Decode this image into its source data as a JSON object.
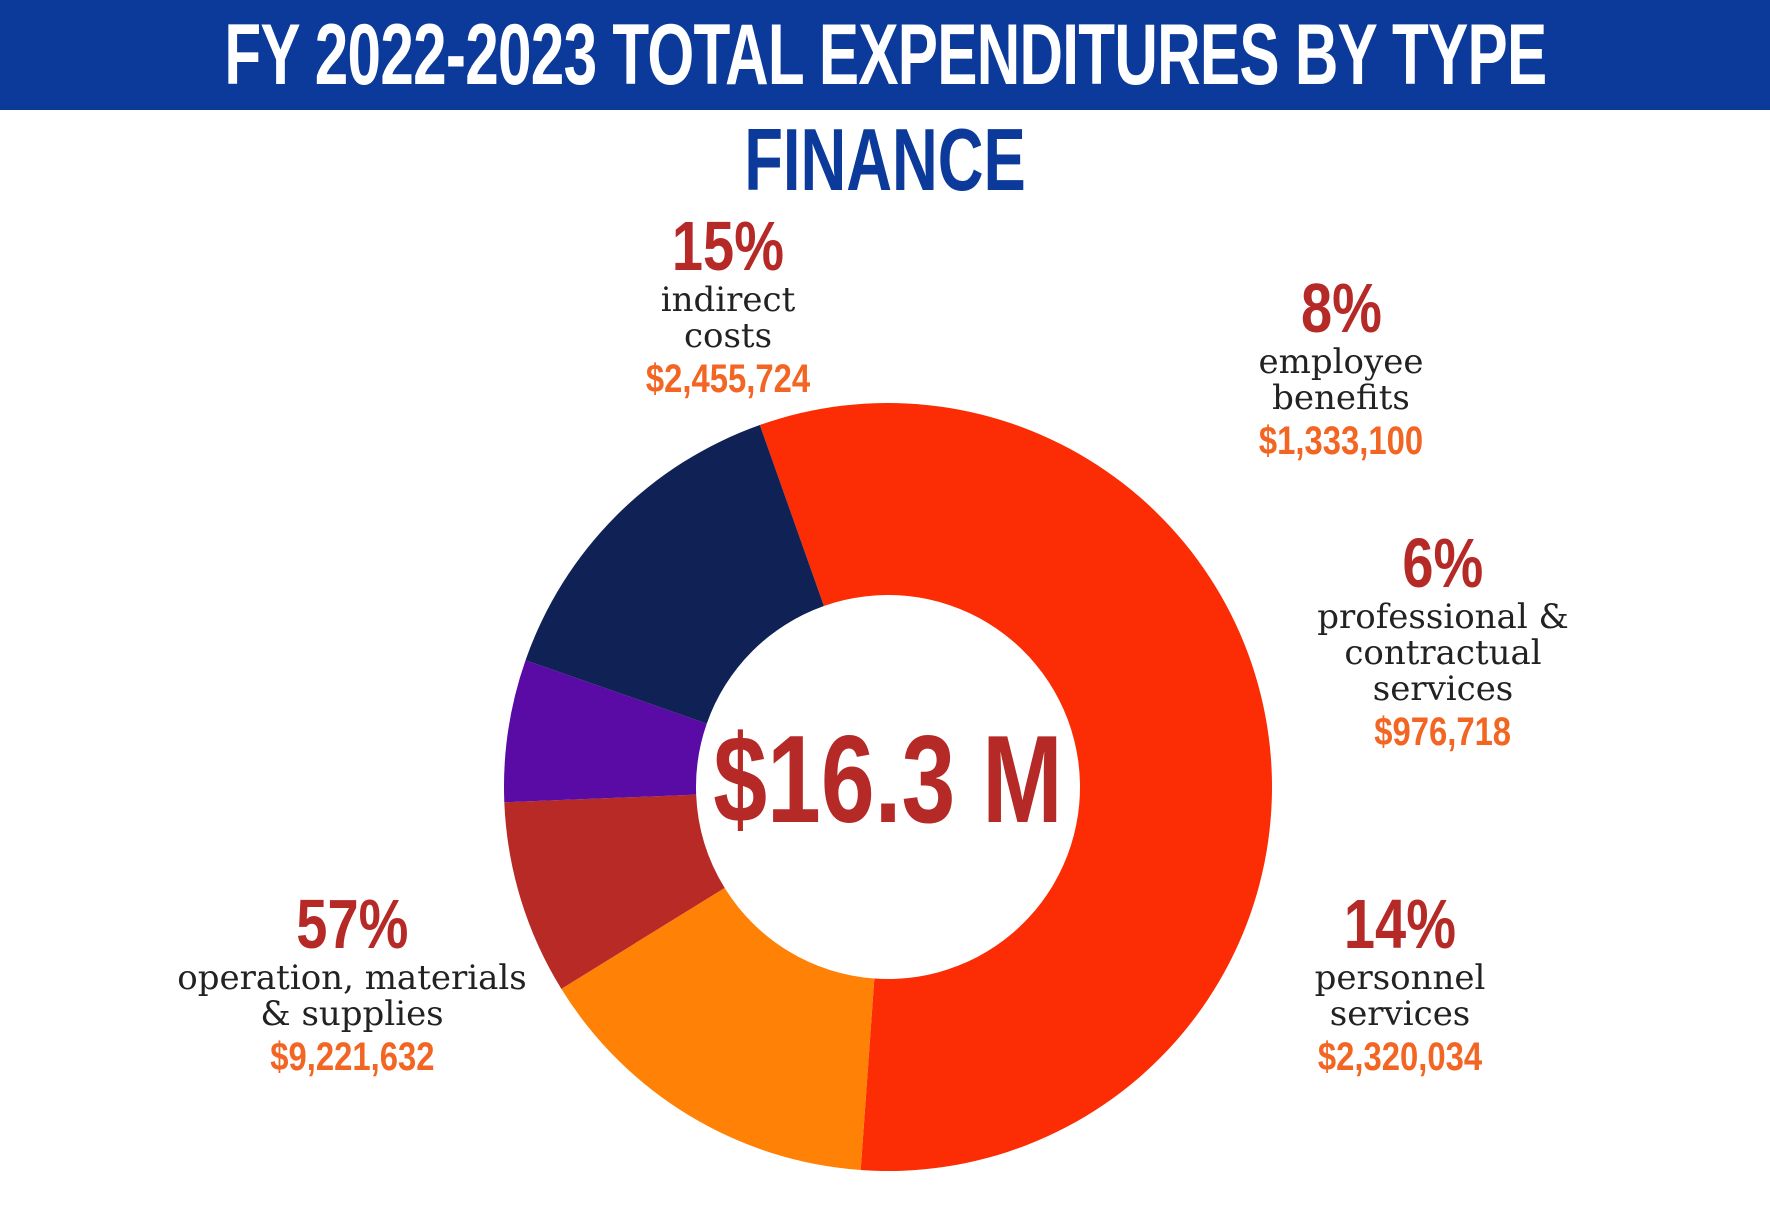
{
  "header": {
    "title": "FY 2022-2023  TOTAL EXPENDITURES BY TYPE",
    "subtitle": "FINANCE"
  },
  "center": {
    "total": "$16.3 M"
  },
  "colors": {
    "banner": "#0b3a9b",
    "percent_text": "#b52a26",
    "amount_text": "#f26522"
  },
  "chart_data": {
    "type": "pie",
    "title": "FY 2022-2023  TOTAL EXPENDITURES BY TYPE",
    "subtitle": "FINANCE",
    "center_label": "$16.3 M",
    "categories": [
      "operation, materials & supplies",
      "indirect costs",
      "employee benefits",
      "professional & contractual services",
      "personnel services"
    ],
    "values": [
      9221632,
      2455724,
      1333100,
      976718,
      2320034
    ],
    "percent_labels": [
      "57%",
      "15%",
      "8%",
      "6%",
      "14%"
    ],
    "amount_labels": [
      "$9,221,632",
      "$2,455,724",
      "$1,333,100",
      "$976,718",
      "$2,320,034"
    ],
    "colors": [
      "#fc2c04",
      "#ff8106",
      "#b82a26",
      "#5a0aa5",
      "#102155"
    ]
  },
  "labels": {
    "operation": {
      "pct": "57%",
      "name": "operation, materials\n& supplies",
      "amount": "$9,221,632"
    },
    "indirect": {
      "pct": "15%",
      "name": "indirect\ncosts",
      "amount": "$2,455,724"
    },
    "benefits": {
      "pct": "8%",
      "name": "employee\nbenefits",
      "amount": "$1,333,100"
    },
    "professional": {
      "pct": "6%",
      "name": "professional &\ncontractual\nservices",
      "amount": "$976,718"
    },
    "personnel": {
      "pct": "14%",
      "name": "personnel\nservices",
      "amount": "$2,320,034"
    }
  }
}
